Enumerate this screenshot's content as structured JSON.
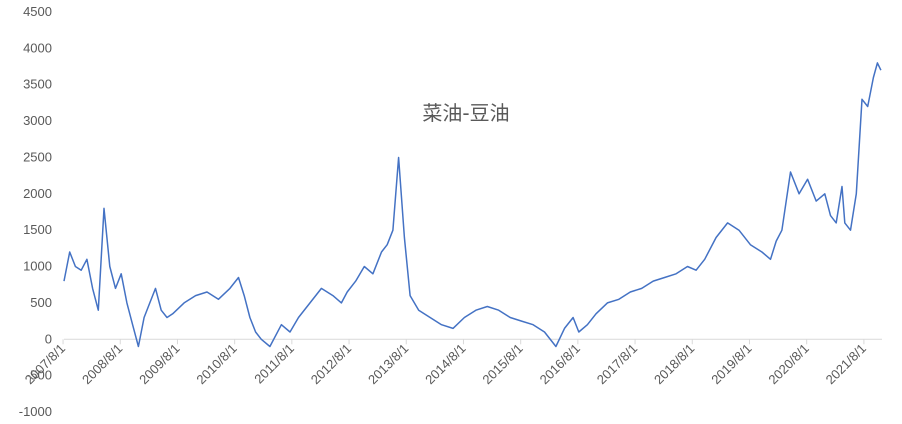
{
  "chart_data": {
    "type": "line",
    "title": "菜油-豆油",
    "xlabel": "",
    "ylabel": "",
    "ylim": [
      -1000,
      4500
    ],
    "y_ticks": [
      4500,
      4000,
      3500,
      3000,
      2500,
      2000,
      1500,
      1000,
      500,
      0,
      -500,
      -1000
    ],
    "x_tick_labels": [
      "2007/8/1",
      "2008/8/1",
      "2009/8/1",
      "2010/8/1",
      "2011/8/1",
      "2012/8/1",
      "2013/8/1",
      "2014/8/1",
      "2015/8/1",
      "2016/8/1",
      "2017/8/1",
      "2018/8/1",
      "2019/8/1",
      "2020/8/1",
      "2021/8/1"
    ],
    "grid": false,
    "legend": "none",
    "line_color": "#4472c4",
    "series": [
      {
        "x": [
          2007.6,
          2007.7,
          2007.8,
          2007.9,
          2008.0,
          2008.1,
          2008.2,
          2008.3,
          2008.4,
          2008.5,
          2008.6,
          2008.7,
          2008.8,
          2008.9,
          2009.0,
          2009.1,
          2009.2,
          2009.3,
          2009.4,
          2009.5,
          2009.7,
          2009.9,
          2010.1,
          2010.3,
          2010.5,
          2010.65,
          2010.75,
          2010.85,
          2010.95,
          2011.05,
          2011.2,
          2011.4,
          2011.55,
          2011.7,
          2011.9,
          2012.1,
          2012.3,
          2012.45,
          2012.55,
          2012.7,
          2012.85,
          2013.0,
          2013.15,
          2013.25,
          2013.35,
          2013.45,
          2013.55,
          2013.65,
          2013.8,
          2014.0,
          2014.2,
          2014.4,
          2014.6,
          2014.8,
          2015.0,
          2015.2,
          2015.4,
          2015.6,
          2015.8,
          2016.0,
          2016.2,
          2016.35,
          2016.5,
          2016.6,
          2016.75,
          2016.9,
          2017.1,
          2017.3,
          2017.5,
          2017.7,
          2017.9,
          2018.1,
          2018.3,
          2018.5,
          2018.65,
          2018.8,
          2019.0,
          2019.2,
          2019.4,
          2019.6,
          2019.8,
          2019.95,
          2020.05,
          2020.15,
          2020.3,
          2020.45,
          2020.6,
          2020.75,
          2020.9,
          2021.0,
          2021.1,
          2021.2,
          2021.25,
          2021.35,
          2021.45,
          2021.55,
          2021.65,
          2021.75,
          2021.82,
          2021.88
        ],
        "y": [
          800,
          1200,
          1000,
          950,
          1100,
          700,
          400,
          1800,
          1000,
          700,
          900,
          500,
          200,
          -100,
          300,
          500,
          700,
          400,
          300,
          350,
          500,
          600,
          650,
          550,
          700,
          850,
          600,
          300,
          100,
          0,
          -100,
          200,
          100,
          300,
          500,
          700,
          600,
          500,
          650,
          800,
          1000,
          900,
          1200,
          1300,
          1500,
          2500,
          1400,
          600,
          400,
          300,
          200,
          150,
          300,
          400,
          450,
          400,
          300,
          250,
          200,
          100,
          -100,
          150,
          300,
          100,
          200,
          350,
          500,
          550,
          650,
          700,
          800,
          850,
          900,
          1000,
          950,
          1100,
          1400,
          1600,
          1500,
          1300,
          1200,
          1100,
          1350,
          1500,
          2300,
          2000,
          2200,
          1900,
          2000,
          1700,
          1600,
          2100,
          1600,
          1500,
          2000,
          3300,
          3200,
          3600,
          3800,
          3700
        ]
      }
    ]
  }
}
